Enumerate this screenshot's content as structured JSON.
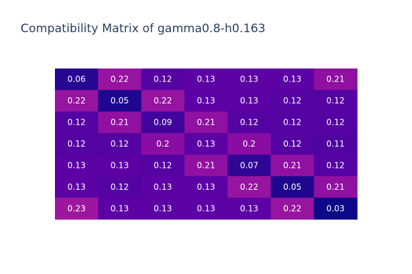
{
  "chart_data": {
    "type": "heatmap",
    "title": "Compatibility Matrix of gamma0.8-h0.163",
    "rows": 7,
    "cols": 7,
    "values": [
      [
        0.06,
        0.22,
        0.12,
        0.13,
        0.13,
        0.13,
        0.21
      ],
      [
        0.22,
        0.05,
        0.22,
        0.13,
        0.13,
        0.12,
        0.12
      ],
      [
        0.12,
        0.21,
        0.09,
        0.21,
        0.12,
        0.12,
        0.12
      ],
      [
        0.12,
        0.12,
        0.2,
        0.13,
        0.2,
        0.12,
        0.11
      ],
      [
        0.13,
        0.13,
        0.12,
        0.21,
        0.07,
        0.21,
        0.12
      ],
      [
        0.13,
        0.12,
        0.13,
        0.13,
        0.22,
        0.05,
        0.21
      ],
      [
        0.23,
        0.13,
        0.13,
        0.13,
        0.13,
        0.22,
        0.03
      ]
    ],
    "colorscale": [
      "#0d0887",
      "#46039f",
      "#7201a8",
      "#9c179e"
    ],
    "zmin": 0.03,
    "zmax": 0.23,
    "label_color": "#ffffff"
  }
}
